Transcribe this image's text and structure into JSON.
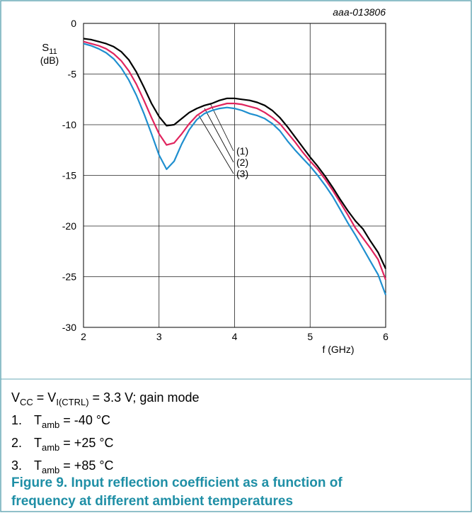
{
  "chart_data": {
    "type": "line",
    "figure_id": "aaa-013806",
    "y_label": {
      "symbol": "S",
      "sub": "11",
      "unit": "(dB)"
    },
    "x_label": "f (GHz)",
    "xlim": [
      2,
      6
    ],
    "xticks": [
      2,
      3,
      4,
      5,
      6
    ],
    "ylim": [
      -30,
      0
    ],
    "yticks": [
      0,
      -5,
      -10,
      -15,
      -20,
      -25,
      -30
    ],
    "grid": true,
    "x": [
      2.0,
      2.1,
      2.2,
      2.3,
      2.4,
      2.5,
      2.6,
      2.7,
      2.8,
      2.9,
      3.0,
      3.1,
      3.2,
      3.3,
      3.4,
      3.5,
      3.6,
      3.7,
      3.8,
      3.9,
      4.0,
      4.1,
      4.2,
      4.3,
      4.4,
      4.5,
      4.6,
      4.7,
      4.8,
      4.9,
      5.0,
      5.1,
      5.2,
      5.3,
      5.4,
      5.5,
      5.6,
      5.7,
      5.8,
      5.9,
      6.0
    ],
    "series": [
      {
        "name": "(1)",
        "color": "#000000",
        "values": [
          -1.5,
          -1.6,
          -1.8,
          -2.0,
          -2.3,
          -2.8,
          -3.6,
          -4.8,
          -6.3,
          -7.9,
          -9.2,
          -10.1,
          -10.0,
          -9.4,
          -8.8,
          -8.4,
          -8.1,
          -7.9,
          -7.6,
          -7.4,
          -7.4,
          -7.5,
          -7.6,
          -7.8,
          -8.1,
          -8.6,
          -9.3,
          -10.2,
          -11.2,
          -12.2,
          -13.2,
          -14.1,
          -15.1,
          -16.2,
          -17.4,
          -18.5,
          -19.5,
          -20.3,
          -21.5,
          -22.6,
          -24.2
        ]
      },
      {
        "name": "(2)",
        "color": "#e0245e",
        "values": [
          -1.8,
          -2.0,
          -2.2,
          -2.5,
          -3.0,
          -3.7,
          -4.7,
          -6.0,
          -7.6,
          -9.3,
          -10.9,
          -12.0,
          -11.8,
          -10.9,
          -9.9,
          -9.1,
          -8.6,
          -8.3,
          -8.1,
          -7.9,
          -7.9,
          -8.0,
          -8.2,
          -8.4,
          -8.8,
          -9.3,
          -9.9,
          -10.8,
          -11.7,
          -12.7,
          -13.6,
          -14.4,
          -15.4,
          -16.5,
          -17.7,
          -18.9,
          -20.2,
          -21.2,
          -22.2,
          -23.3,
          -25.3
        ]
      },
      {
        "name": "(3)",
        "color": "#1f8fcf",
        "values": [
          -2.0,
          -2.2,
          -2.5,
          -2.9,
          -3.5,
          -4.4,
          -5.6,
          -7.1,
          -8.9,
          -10.9,
          -13.0,
          -14.4,
          -13.6,
          -11.9,
          -10.5,
          -9.5,
          -8.9,
          -8.6,
          -8.4,
          -8.3,
          -8.4,
          -8.6,
          -8.9,
          -9.1,
          -9.4,
          -9.9,
          -10.6,
          -11.6,
          -12.5,
          -13.3,
          -14.1,
          -15.0,
          -16.0,
          -17.1,
          -18.4,
          -19.7,
          -20.9,
          -22.2,
          -23.5,
          -24.8,
          -26.8
        ]
      }
    ]
  },
  "notes": {
    "conditions": [
      "V",
      "CC",
      " = V",
      "I(CTRL)",
      " = 3.3 V; gain mode"
    ],
    "items": [
      {
        "number": "1.",
        "symbol": "T",
        "sub": "amb",
        "text": " = -40 °C"
      },
      {
        "number": "2.",
        "symbol": "T",
        "sub": "amb",
        "text": " = +25 °C"
      },
      {
        "number": "3.",
        "symbol": "T",
        "sub": "amb",
        "text": " = +85 °C"
      }
    ]
  },
  "caption": [
    "Figure 9.  Input reflection coefficient as a function of",
    "frequency at different ambient temperatures"
  ]
}
